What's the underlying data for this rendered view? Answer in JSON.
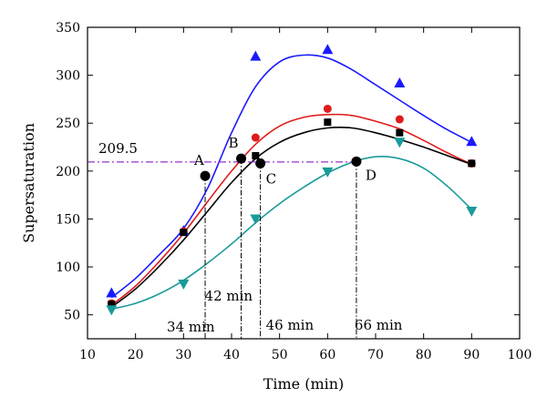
{
  "chart_data": {
    "type": "scatter",
    "title": "",
    "xlabel": "Time (min)",
    "ylabel": "Supersaturation",
    "xlim": [
      10,
      100
    ],
    "ylim": [
      25,
      350
    ],
    "xticks": [
      10,
      20,
      30,
      40,
      50,
      60,
      70,
      80,
      90,
      100
    ],
    "yticks": [
      50,
      100,
      150,
      200,
      250,
      300,
      350
    ],
    "grid": false,
    "legend": "none",
    "threshold": {
      "value": 209.5,
      "label": "209.5",
      "color": "#9933cc"
    },
    "series": [
      {
        "color": "#1a1aff",
        "marker": "triangle-up",
        "points": [
          [
            15,
            73
          ],
          [
            30,
            138
          ],
          [
            45,
            320
          ],
          [
            60,
            327
          ],
          [
            75,
            292
          ],
          [
            90,
            231
          ]
        ],
        "curve": [
          [
            15,
            68
          ],
          [
            20,
            88
          ],
          [
            25,
            113
          ],
          [
            30,
            140
          ],
          [
            35,
            182
          ],
          [
            40,
            240
          ],
          [
            45,
            288
          ],
          [
            50,
            314
          ],
          [
            55,
            321
          ],
          [
            60,
            318
          ],
          [
            65,
            306
          ],
          [
            70,
            290
          ],
          [
            75,
            274
          ],
          [
            80,
            258
          ],
          [
            85,
            243
          ],
          [
            90,
            230
          ]
        ]
      },
      {
        "color": "#e01b1b",
        "marker": "circle",
        "points": [
          [
            15,
            62
          ],
          [
            30,
            137
          ],
          [
            45,
            235
          ],
          [
            60,
            265
          ],
          [
            75,
            254
          ],
          [
            90,
            208
          ]
        ],
        "curve": [
          [
            15,
            60
          ],
          [
            20,
            80
          ],
          [
            25,
            106
          ],
          [
            30,
            135
          ],
          [
            35,
            168
          ],
          [
            40,
            200
          ],
          [
            45,
            228
          ],
          [
            50,
            247
          ],
          [
            55,
            256
          ],
          [
            60,
            259
          ],
          [
            65,
            258
          ],
          [
            70,
            252
          ],
          [
            75,
            244
          ],
          [
            80,
            232
          ],
          [
            85,
            219
          ],
          [
            90,
            207
          ]
        ]
      },
      {
        "color": "#000000",
        "marker": "square",
        "points": [
          [
            15,
            61
          ],
          [
            30,
            136
          ],
          [
            45,
            216
          ],
          [
            60,
            251
          ],
          [
            75,
            240
          ],
          [
            90,
            208
          ]
        ],
        "curve": [
          [
            15,
            58
          ],
          [
            20,
            77
          ],
          [
            25,
            101
          ],
          [
            30,
            128
          ],
          [
            35,
            158
          ],
          [
            40,
            188
          ],
          [
            45,
            213
          ],
          [
            50,
            230
          ],
          [
            55,
            240
          ],
          [
            60,
            245
          ],
          [
            65,
            245
          ],
          [
            70,
            240
          ],
          [
            75,
            233
          ],
          [
            80,
            225
          ],
          [
            85,
            216
          ],
          [
            90,
            207
          ]
        ]
      },
      {
        "color": "#1a9a9a",
        "marker": "triangle-down",
        "points": [
          [
            15,
            55
          ],
          [
            30,
            82
          ],
          [
            45,
            150
          ],
          [
            60,
            199
          ],
          [
            75,
            230
          ],
          [
            90,
            158
          ]
        ],
        "curve": [
          [
            15,
            56
          ],
          [
            20,
            62
          ],
          [
            25,
            72
          ],
          [
            30,
            86
          ],
          [
            35,
            104
          ],
          [
            40,
            124
          ],
          [
            45,
            146
          ],
          [
            50,
            166
          ],
          [
            55,
            183
          ],
          [
            60,
            198
          ],
          [
            65,
            209
          ],
          [
            70,
            215
          ],
          [
            75,
            213
          ],
          [
            80,
            203
          ],
          [
            85,
            184
          ],
          [
            90,
            160
          ]
        ]
      }
    ],
    "intersections": [
      {
        "label": "A",
        "x": 34.5,
        "y": 195,
        "time_label": "34 min"
      },
      {
        "label": "B",
        "x": 42,
        "y": 213,
        "time_label": "42 min"
      },
      {
        "label": "C",
        "x": 46,
        "y": 208,
        "time_label": "46 min"
      },
      {
        "label": "D",
        "x": 66,
        "y": 210,
        "time_label": "66 min"
      }
    ]
  }
}
